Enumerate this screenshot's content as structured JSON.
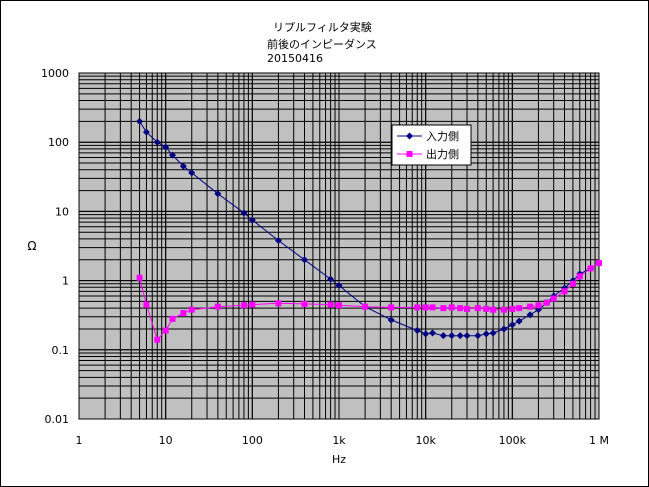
{
  "chart_data": {
    "type": "line",
    "title": [
      "リプルフィルタ実験",
      "前後のインピーダンス",
      "20150416"
    ],
    "xlabel": "Hz",
    "ylabel": "Ω",
    "xscale": "log",
    "yscale": "log",
    "xlim": [
      1,
      1000000
    ],
    "ylim": [
      0.01,
      1000
    ],
    "x_tick_labels": [
      "1",
      "10",
      "100",
      "1k",
      "10k",
      "100k",
      "1 M"
    ],
    "y_tick_labels": [
      "0.01",
      "0.1",
      "1",
      "10",
      "100",
      "1000"
    ],
    "grid": true,
    "plot_background": "#c0c0c0",
    "legend_position": "top-right",
    "series": [
      {
        "name": "入力側",
        "color": "#000080",
        "marker": "diamond",
        "x": [
          5,
          6,
          8,
          10,
          12,
          16,
          20,
          40,
          80,
          100,
          200,
          400,
          800,
          1000,
          2000,
          4000,
          8000,
          10000,
          12000,
          16000,
          20000,
          25000,
          30000,
          40000,
          50000,
          60000,
          80000,
          100000,
          120000,
          160000,
          200000,
          250000,
          300000,
          400000,
          500000,
          600000,
          800000,
          1000000
        ],
        "y": [
          200,
          140,
          100,
          85,
          65,
          45,
          36,
          18,
          9.5,
          7.5,
          3.8,
          2.0,
          1.05,
          0.85,
          0.42,
          0.27,
          0.19,
          0.17,
          0.175,
          0.16,
          0.16,
          0.16,
          0.16,
          0.16,
          0.17,
          0.175,
          0.2,
          0.23,
          0.26,
          0.32,
          0.38,
          0.48,
          0.6,
          0.78,
          1.0,
          1.25,
          1.5,
          1.8
        ]
      },
      {
        "name": "出力側",
        "color": "#ff00ff",
        "marker": "square",
        "x": [
          5,
          6,
          8,
          10,
          12,
          16,
          20,
          40,
          80,
          100,
          200,
          400,
          800,
          1000,
          2000,
          4000,
          8000,
          10000,
          12000,
          16000,
          20000,
          25000,
          30000,
          40000,
          50000,
          60000,
          80000,
          100000,
          120000,
          160000,
          200000,
          250000,
          300000,
          400000,
          500000,
          600000,
          800000,
          1000000
        ],
        "y": [
          1.1,
          0.45,
          0.14,
          0.19,
          0.28,
          0.34,
          0.38,
          0.42,
          0.44,
          0.45,
          0.47,
          0.46,
          0.45,
          0.44,
          0.42,
          0.41,
          0.41,
          0.41,
          0.41,
          0.4,
          0.41,
          0.4,
          0.39,
          0.4,
          0.39,
          0.38,
          0.38,
          0.39,
          0.4,
          0.42,
          0.44,
          0.48,
          0.55,
          0.7,
          0.9,
          1.15,
          1.5,
          1.8
        ]
      }
    ]
  }
}
